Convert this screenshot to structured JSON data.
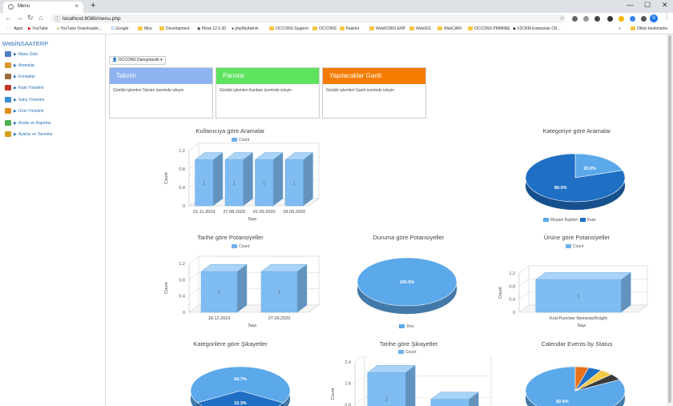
{
  "browser": {
    "tab_title": "Menu",
    "url": "localhost:8086/menu.php",
    "bookmarks": [
      "Apps",
      "YouTube",
      "YouTube Downloader...",
      "Google",
      "Misc",
      "Development",
      "Plesk 12.5.30",
      "phpMyAdmin",
      "OCCONS Support",
      "OCCONS",
      "İhaleler",
      "WebKOBIS ERP",
      "WebIGS",
      "WebCARI",
      "OCCONS PMIMINE",
      "X2CRM Enterprise CR...",
      "Other bookmarks"
    ],
    "avatar_letter": "S"
  },
  "sidebar": {
    "brand": "WebİNSAATERP",
    "items": [
      {
        "label": "Masa Üstü",
        "color": "#4a7fc0"
      },
      {
        "label": "Aramalar",
        "color": "#d9962a"
      },
      {
        "label": "Kontaklar",
        "color": "#9b6b3a"
      },
      {
        "label": "İhale Yönetimi",
        "color": "#c0392b"
      },
      {
        "label": "Satış Yönetimi",
        "color": "#3b8ed0"
      },
      {
        "label": "Ürün Yönetimi",
        "color": "#e08a20"
      },
      {
        "label": "Analiz ve Raporlar",
        "color": "#4caf50"
      },
      {
        "label": "Ayarlar ve Tanımlar",
        "color": "#d4a017"
      }
    ]
  },
  "user_button": "OCCONS Danışmanlık",
  "cards": [
    {
      "title": "Takvim",
      "desc": "Günlük işlemleri Takvim üzerinde izleyin",
      "color": "#8eb4f0"
    },
    {
      "title": "Panolar",
      "desc": "Günlük işlemleri Kanban üzerinde izleyin",
      "color": "#5ee35e"
    },
    {
      "title": "Yapılacaklar Gantt",
      "desc": "Günlük işlemleri Gantt üzerinde izleyin",
      "color": "#f57c00"
    }
  ],
  "chart_data": [
    {
      "id": "chart1",
      "type": "bar",
      "title": "Kullanıcıya göre Aramalar",
      "legend": [
        "Count"
      ],
      "categories": [
        "01.11.2019",
        "27.08.2020",
        "01.09.2020",
        "09.09.2020"
      ],
      "values": [
        1,
        1,
        1,
        1
      ],
      "ylim": [
        0,
        1.2
      ],
      "yticks": [
        "0",
        "0.4",
        "0.8",
        "1.2"
      ],
      "xlabel": "Sayı",
      "ylabel": "Count"
    },
    {
      "id": "chart2",
      "type": "pie",
      "title": "Kategoriye göre Aramalar",
      "slices": [
        {
          "label": "Müşteri İlişkileri",
          "value": 20.0,
          "color": "#5ba8ea",
          "text": "20.0%"
        },
        {
          "label": "İhale",
          "value": 80.0,
          "color": "#1f6fc4",
          "text": "80.0%"
        }
      ]
    },
    {
      "id": "chart3",
      "type": "bar",
      "title": "Tarihe göre Potansiyeller",
      "legend": [
        "Count"
      ],
      "categories": [
        "18.12.2019",
        "27.09.2020"
      ],
      "values": [
        1,
        1
      ],
      "ylim": [
        0,
        1.2
      ],
      "yticks": [
        "0",
        "0.4",
        "0.8",
        "1.2"
      ],
      "xlabel": "Sayı",
      "ylabel": "Count"
    },
    {
      "id": "chart4",
      "type": "pie",
      "title": "Duruma göre Potansiyeller",
      "slices": [
        {
          "label": "Yeni",
          "value": 100.0,
          "color": "#5ba8ea",
          "text": "100.0%"
        }
      ]
    },
    {
      "id": "chart5",
      "type": "bar",
      "title": "Ürüne göre Potansiyeller",
      "legend": [
        "Count"
      ],
      "categories": [
        "Kral Puncher Nemesis/Knight"
      ],
      "values": [
        1
      ],
      "ylim": [
        0,
        1.2
      ],
      "yticks": [
        "0",
        "0.4",
        "0.8",
        "1.2"
      ],
      "xlabel": "Sayı",
      "ylabel": "Count"
    },
    {
      "id": "chart6",
      "type": "pie",
      "title": "Kategorilere göre Şikayetler",
      "slices": [
        {
          "label": "",
          "value": 66.7,
          "color": "#5ba8ea",
          "text": "66.7%"
        },
        {
          "label": "",
          "value": 33.3,
          "color": "#1f6fc4",
          "text": "33.3%"
        }
      ]
    },
    {
      "id": "chart7",
      "type": "bar",
      "title": "Tarihe göre Şikayetler",
      "legend": [
        "Count"
      ],
      "categories": [
        "",
        ""
      ],
      "values": [
        2,
        1
      ],
      "ylim": [
        0,
        2.4
      ],
      "yticks": [
        "0.8",
        "1.6",
        "2.4"
      ],
      "xlabel": "",
      "ylabel": "Count"
    },
    {
      "id": "chart8",
      "type": "pie",
      "title": "Calendar Events by Status",
      "slices": [
        {
          "label": "",
          "value": 82.6,
          "color": "#5ba8ea",
          "text": "82.6%"
        },
        {
          "label": "",
          "value": 4.35,
          "color": "#e8731b"
        },
        {
          "label": "",
          "value": 4.35,
          "color": "#1f6fc4"
        },
        {
          "label": "",
          "value": 4.35,
          "color": "#f3c94a"
        },
        {
          "label": "",
          "value": 4.35,
          "color": "#3a3a3a"
        }
      ]
    }
  ]
}
